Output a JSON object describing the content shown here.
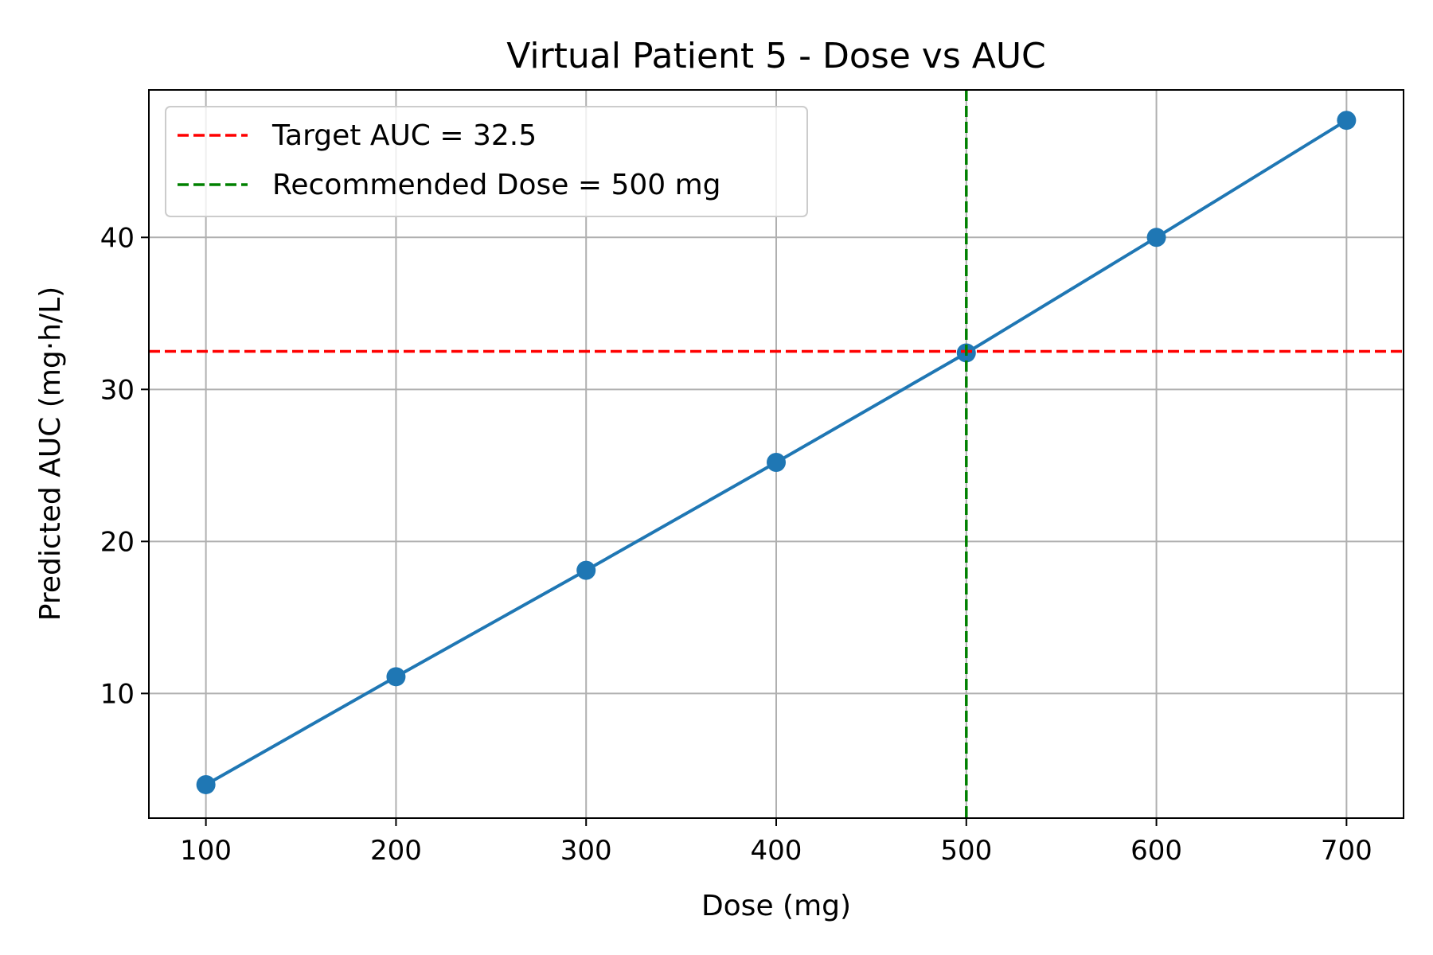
{
  "chart_data": {
    "type": "line",
    "title": "Virtual Patient 5 - Dose vs AUC",
    "xlabel": "Dose (mg)",
    "ylabel": "Predicted AUC (mg·h/L)",
    "xlim": [
      70,
      730
    ],
    "ylim": [
      1.8,
      49.7
    ],
    "xticks": [
      100,
      200,
      300,
      400,
      500,
      600,
      700
    ],
    "yticks": [
      10,
      20,
      30,
      40
    ],
    "grid": true,
    "legend_position": "upper-left",
    "series": [
      {
        "x": [
          100,
          200,
          300,
          400,
          500,
          600,
          700
        ],
        "values": [
          4.0,
          11.1,
          18.1,
          25.2,
          32.4,
          40.0,
          47.7
        ],
        "color": "#1f77b4"
      }
    ],
    "reference_lines": [
      {
        "orientation": "horizontal",
        "value": 32.5,
        "label": "Target AUC = 32.5",
        "color": "#ff0000",
        "style": "dashed"
      },
      {
        "orientation": "vertical",
        "value": 500,
        "label": "Recommended Dose = 500 mg",
        "color": "#008000",
        "style": "dashed"
      }
    ]
  }
}
